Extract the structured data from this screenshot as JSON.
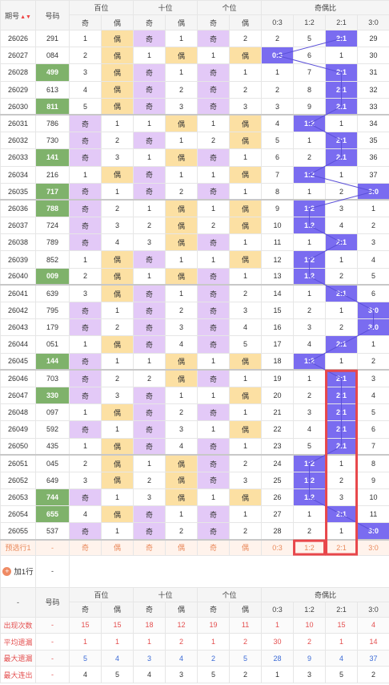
{
  "header": {
    "issue": "期号",
    "sort_icon": "sort-caret-icon",
    "num": "号码",
    "groups": [
      "百位",
      "十位",
      "个位",
      "奇偶比"
    ],
    "sub": [
      "奇",
      "偶",
      "奇",
      "偶",
      "奇",
      "偶",
      "0:3",
      "1:2",
      "2:1",
      "3:0"
    ]
  },
  "rows": [
    {
      "p": "26026",
      "n": "291",
      "c": [
        "1",
        "偶",
        "奇",
        "1",
        "奇",
        "2",
        "2",
        "5",
        "2:1",
        "29"
      ],
      "hl": false,
      "sel": 8
    },
    {
      "p": "26027",
      "n": "084",
      "c": [
        "2",
        "偶",
        "1",
        "偶",
        "1",
        "偶",
        "0:3",
        "6",
        "1",
        "30"
      ],
      "hl": false,
      "sel": 6
    },
    {
      "p": "26028",
      "n": "499",
      "c": [
        "3",
        "偶",
        "奇",
        "1",
        "奇",
        "1",
        "1",
        "7",
        "2:1",
        "31"
      ],
      "hl": true,
      "sel": 8
    },
    {
      "p": "26029",
      "n": "613",
      "c": [
        "4",
        "偶",
        "奇",
        "2",
        "奇",
        "2",
        "2",
        "8",
        "2:1",
        "32"
      ],
      "hl": false,
      "sel": 8
    },
    {
      "p": "26030",
      "n": "811",
      "c": [
        "5",
        "偶",
        "奇",
        "3",
        "奇",
        "3",
        "3",
        "9",
        "2:1",
        "33"
      ],
      "hl": true,
      "sel": 8
    },
    {
      "p": "26031",
      "n": "786",
      "c": [
        "奇",
        "1",
        "1",
        "偶",
        "1",
        "偶",
        "4",
        "1:2",
        "1",
        "34"
      ],
      "hl": false,
      "sel": 7
    },
    {
      "p": "26032",
      "n": "730",
      "c": [
        "奇",
        "2",
        "奇",
        "1",
        "2",
        "偶",
        "5",
        "1",
        "2:1",
        "35"
      ],
      "hl": false,
      "sel": 8
    },
    {
      "p": "26033",
      "n": "141",
      "c": [
        "奇",
        "3",
        "1",
        "偶",
        "奇",
        "1",
        "6",
        "2",
        "2:1",
        "36"
      ],
      "hl": true,
      "sel": 8
    },
    {
      "p": "26034",
      "n": "216",
      "c": [
        "1",
        "偶",
        "奇",
        "1",
        "1",
        "偶",
        "7",
        "1:2",
        "1",
        "37"
      ],
      "hl": false,
      "sel": 7
    },
    {
      "p": "26035",
      "n": "717",
      "c": [
        "奇",
        "1",
        "奇",
        "2",
        "奇",
        "1",
        "8",
        "1",
        "2",
        "3:0"
      ],
      "hl": true,
      "sel": 9
    },
    {
      "p": "26036",
      "n": "788",
      "c": [
        "奇",
        "2",
        "1",
        "偶",
        "1",
        "偶",
        "9",
        "1:2",
        "3",
        "1"
      ],
      "hl": true,
      "sel": 7
    },
    {
      "p": "26037",
      "n": "724",
      "c": [
        "奇",
        "3",
        "2",
        "偶",
        "2",
        "偶",
        "10",
        "1:2",
        "4",
        "2"
      ],
      "hl": false,
      "sel": 7
    },
    {
      "p": "26038",
      "n": "789",
      "c": [
        "奇",
        "4",
        "3",
        "偶",
        "奇",
        "1",
        "11",
        "1",
        "2:1",
        "3"
      ],
      "hl": false,
      "sel": 8
    },
    {
      "p": "26039",
      "n": "852",
      "c": [
        "1",
        "偶",
        "奇",
        "1",
        "1",
        "偶",
        "12",
        "1:2",
        "1",
        "4"
      ],
      "hl": false,
      "sel": 7
    },
    {
      "p": "26040",
      "n": "009",
      "c": [
        "2",
        "偶",
        "1",
        "偶",
        "奇",
        "1",
        "13",
        "1:2",
        "2",
        "5"
      ],
      "hl": true,
      "sel": 7
    },
    {
      "p": "26041",
      "n": "639",
      "c": [
        "3",
        "偶",
        "奇",
        "1",
        "奇",
        "2",
        "14",
        "1",
        "2:1",
        "6"
      ],
      "hl": false,
      "sel": 8
    },
    {
      "p": "26042",
      "n": "795",
      "c": [
        "奇",
        "1",
        "奇",
        "2",
        "奇",
        "3",
        "15",
        "2",
        "1",
        "3:0"
      ],
      "hl": false,
      "sel": 9
    },
    {
      "p": "26043",
      "n": "179",
      "c": [
        "奇",
        "2",
        "奇",
        "3",
        "奇",
        "4",
        "16",
        "3",
        "2",
        "3:0"
      ],
      "hl": false,
      "sel": 9
    },
    {
      "p": "26044",
      "n": "051",
      "c": [
        "1",
        "偶",
        "奇",
        "4",
        "奇",
        "5",
        "17",
        "4",
        "2:1",
        "1"
      ],
      "hl": false,
      "sel": 8
    },
    {
      "p": "26045",
      "n": "144",
      "c": [
        "奇",
        "1",
        "1",
        "偶",
        "1",
        "偶",
        "18",
        "1:2",
        "1",
        "2"
      ],
      "hl": true,
      "sel": 7
    },
    {
      "p": "26046",
      "n": "703",
      "c": [
        "奇",
        "2",
        "2",
        "偶",
        "奇",
        "1",
        "19",
        "1",
        "2:1",
        "3"
      ],
      "hl": false,
      "sel": 8
    },
    {
      "p": "26047",
      "n": "330",
      "c": [
        "奇",
        "3",
        "奇",
        "1",
        "1",
        "偶",
        "20",
        "2",
        "2:1",
        "4"
      ],
      "hl": true,
      "sel": 8
    },
    {
      "p": "26048",
      "n": "097",
      "c": [
        "1",
        "偶",
        "奇",
        "2",
        "奇",
        "1",
        "21",
        "3",
        "2:1",
        "5"
      ],
      "hl": false,
      "sel": 8
    },
    {
      "p": "26049",
      "n": "592",
      "c": [
        "奇",
        "1",
        "奇",
        "3",
        "1",
        "偶",
        "22",
        "4",
        "2:1",
        "6"
      ],
      "hl": false,
      "sel": 8
    },
    {
      "p": "26050",
      "n": "435",
      "c": [
        "1",
        "偶",
        "奇",
        "4",
        "奇",
        "1",
        "23",
        "5",
        "2:1",
        "7"
      ],
      "hl": false,
      "sel": 8
    },
    {
      "p": "26051",
      "n": "045",
      "c": [
        "2",
        "偶",
        "1",
        "偶",
        "奇",
        "2",
        "24",
        "1:2",
        "1",
        "8"
      ],
      "hl": false,
      "sel": 7
    },
    {
      "p": "26052",
      "n": "649",
      "c": [
        "3",
        "偶",
        "2",
        "偶",
        "奇",
        "3",
        "25",
        "1:2",
        "2",
        "9"
      ],
      "hl": false,
      "sel": 7
    },
    {
      "p": "26053",
      "n": "744",
      "c": [
        "奇",
        "1",
        "3",
        "偶",
        "1",
        "偶",
        "26",
        "1:2",
        "3",
        "10"
      ],
      "hl": true,
      "sel": 7
    },
    {
      "p": "26054",
      "n": "655",
      "c": [
        "4",
        "偶",
        "奇",
        "1",
        "奇",
        "1",
        "27",
        "1",
        "2:1",
        "11"
      ],
      "hl": true,
      "sel": 8
    },
    {
      "p": "26055",
      "n": "537",
      "c": [
        "奇",
        "1",
        "奇",
        "2",
        "奇",
        "2",
        "28",
        "2",
        "1",
        "3:0"
      ],
      "hl": false,
      "sel": 9
    }
  ],
  "pred": {
    "label": "预选行1",
    "num": "-",
    "c": [
      "奇",
      "偶",
      "奇",
      "偶",
      "奇",
      "偶",
      "0:3",
      "1:2",
      "2:1",
      "3:0"
    ]
  },
  "add": {
    "icon": "plus-circle-icon",
    "icon_glyph": "+",
    "label": "加1行",
    "num": "-"
  },
  "foot_hdr": {
    "issue": "-",
    "num": "号码"
  },
  "stats": [
    {
      "label": "出现次数",
      "num": "-",
      "v": [
        "15",
        "15",
        "18",
        "12",
        "19",
        "11",
        "1",
        "10",
        "15",
        "4"
      ]
    },
    {
      "label": "平均遗漏",
      "num": "-",
      "v": [
        "1",
        "1",
        "1",
        "2",
        "1",
        "2",
        "30",
        "2",
        "1",
        "14"
      ]
    },
    {
      "label": "最大遗漏",
      "num": "-",
      "v": [
        "5",
        "4",
        "3",
        "4",
        "2",
        "5",
        "28",
        "9",
        "4",
        "37"
      ]
    },
    {
      "label": "最大连出",
      "num": "-",
      "v": [
        "4",
        "5",
        "4",
        "3",
        "5",
        "2",
        "1",
        "3",
        "5",
        "2"
      ]
    }
  ],
  "colors": {
    "odd": "#e3c9f7",
    "even": "#fce0a3",
    "selected": "#7a6cf0",
    "highlight_sum": "#7fb26b",
    "stat_label": "#e45050",
    "box": "#e8474b"
  }
}
